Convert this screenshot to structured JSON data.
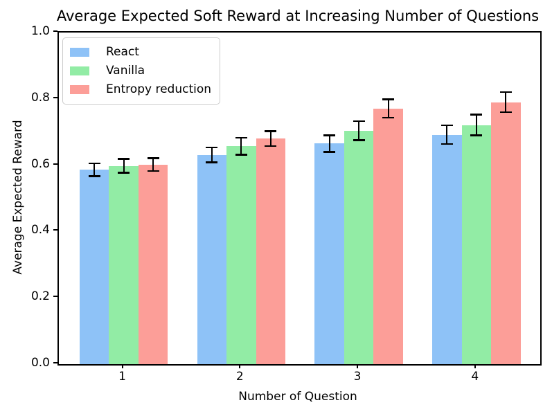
{
  "chart_data": {
    "type": "bar",
    "title": "Average Expected Soft Reward at Increasing Number of Questions",
    "xlabel": "Number of Question",
    "ylabel": "Average Expected Reward",
    "categories": [
      "1",
      "2",
      "3",
      "4"
    ],
    "series": [
      {
        "name": "React",
        "color": "#8ec2f7",
        "values": [
          0.586,
          0.631,
          0.665,
          0.692
        ],
        "errors": [
          0.02,
          0.023,
          0.026,
          0.029
        ]
      },
      {
        "name": "Vanilla",
        "color": "#92eca5",
        "values": [
          0.598,
          0.657,
          0.704,
          0.721
        ],
        "errors": [
          0.021,
          0.026,
          0.029,
          0.032
        ]
      },
      {
        "name": "Entropy reduction",
        "color": "#fc9e98",
        "values": [
          0.602,
          0.68,
          0.771,
          0.79
        ],
        "errors": [
          0.02,
          0.023,
          0.028,
          0.031
        ]
      }
    ],
    "ylim": [
      0.0,
      1.0
    ],
    "yticks": [
      "0.0",
      "0.2",
      "0.4",
      "0.6",
      "0.8",
      "1.0"
    ],
    "error_bar_color": "#000000",
    "grid": false,
    "legend_position": "upper-left"
  }
}
